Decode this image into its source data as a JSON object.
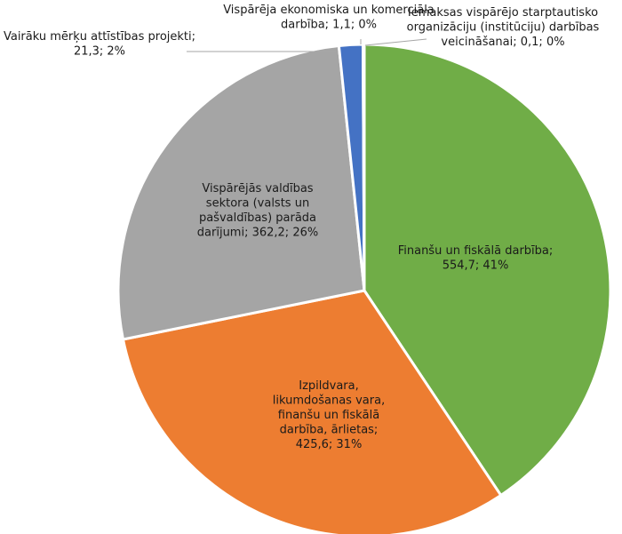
{
  "chart_data": {
    "type": "pie",
    "slices": [
      {
        "name": "Finanšu un fiskālā darbība",
        "value": 554.7,
        "percent": 41,
        "color": "#70ad47",
        "label_lines": [
          "Finanšu un fiskālā darbība;",
          "554,7; 41%"
        ]
      },
      {
        "name": "Izpildvara, likumdošanas vara, finanšu un fiskālā darbība, ārlietas",
        "value": 425.6,
        "percent": 31,
        "color": "#ed7d31",
        "label_lines": [
          "Izpildvara,",
          "likumdošanas vara,",
          "finanšu un fiskālā",
          "darbība, ārlietas;",
          "425,6; 31%"
        ]
      },
      {
        "name": "Vispārējās valdības sektora (valsts un pašvaldības) parāda darījumi",
        "value": 362.2,
        "percent": 26,
        "color": "#a5a5a5",
        "label_lines": [
          "Vispārējās valdības",
          "sektora (valsts un",
          "pašvaldības) parāda",
          "darījumi; 362,2; 26%"
        ]
      },
      {
        "name": "Vairāku mērķu attīstības projekti",
        "value": 21.3,
        "percent": 2,
        "color": "#4472c4",
        "label_lines": [
          "Vairāku mērķu attīstības projekti;",
          "21,3; 2%"
        ]
      },
      {
        "name": "Vispārēja ekonomiska un komerciāla darbība",
        "value": 1.1,
        "percent": 0,
        "color": "#264478",
        "label_lines": [
          "Vispārēja ekonomiska un komerciāla",
          "darbība; 1,1; 0%"
        ]
      },
      {
        "name": "Iemaksas vispārējo starptautisko organizāciju (institūciju) darbības veicināšanai",
        "value": 0.1,
        "percent": 0,
        "color": "#9e480e",
        "label_lines": [
          "Iemaksas vispārējo starptautisko",
          "organizāciju (institūciju) darbības",
          "veicināšanai; 0,1; 0%"
        ]
      }
    ]
  }
}
